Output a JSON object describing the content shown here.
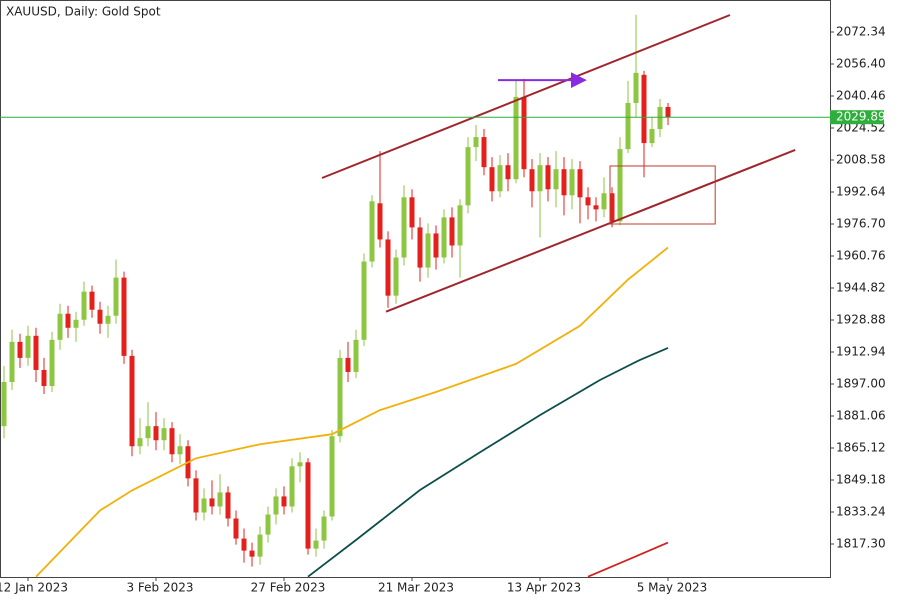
{
  "chart_data": {
    "type": "candlestick",
    "title": "XAUUSD, Daily:  Gold Spot",
    "categories": [
      null,
      null,
      null,
      "12 Jan 2023",
      null,
      null,
      null,
      null,
      null,
      null,
      null,
      null,
      null,
      null,
      null,
      null,
      null,
      null,
      null,
      "3 Feb 2023",
      null,
      null,
      null,
      null,
      null,
      null,
      null,
      null,
      null,
      null,
      null,
      null,
      null,
      null,
      null,
      "27 Feb 2023",
      null,
      null,
      null,
      null,
      null,
      null,
      null,
      null,
      null,
      null,
      null,
      null,
      null,
      null,
      null,
      "21 Mar 2023",
      null,
      null,
      null,
      null,
      null,
      null,
      null,
      null,
      null,
      null,
      null,
      null,
      null,
      null,
      null,
      "13 Apr 2023",
      null,
      null,
      null,
      null,
      null,
      null,
      null,
      null,
      null,
      null,
      null,
      null,
      null,
      null,
      null,
      "5 May 2023"
    ],
    "open": [
      1876,
      1898,
      1918,
      1910,
      1921,
      1904,
      1896,
      1919,
      1932,
      1925,
      1929,
      1943,
      1934,
      1927,
      1931,
      1950,
      1911,
      1866,
      1870,
      1876,
      1869,
      1875,
      1862,
      1866,
      1850,
      1833,
      1840,
      1836,
      1843,
      1830,
      1820,
      1814,
      1811,
      1822,
      1832,
      1841,
      1836,
      1856,
      1858,
      1815,
      1819,
      1831,
      1871,
      1910,
      1903,
      1919,
      1958,
      1987,
      1969,
      1941,
      1960,
      1990,
      1975,
      1955,
      1972,
      1960,
      1980,
      1966,
      1986,
      2015,
      2020,
      2005,
      1993,
      2006,
      1999,
      2040,
      2004,
      1993,
      2006,
      1994,
      2004,
      1991,
      2004,
      1990,
      1986,
      1984,
      1992,
      1978,
      2014,
      2037,
      2051,
      2017,
      2024,
      2035
    ],
    "high": [
      1906,
      1924,
      1922,
      1926,
      1925,
      1910,
      1923,
      1937,
      1936,
      1933,
      1948,
      1946,
      1938,
      1936,
      1959,
      1953,
      1914,
      1880,
      1888,
      1883,
      1880,
      1878,
      1872,
      1869,
      1854,
      1845,
      1849,
      1852,
      1846,
      1834,
      1825,
      1818,
      1826,
      1836,
      1845,
      1846,
      1860,
      1863,
      1860,
      1825,
      1834,
      1874,
      1914,
      1918,
      1924,
      1962,
      1991,
      2013,
      1973,
      1964,
      1996,
      1994,
      1980,
      1977,
      1976,
      1984,
      1985,
      1989,
      2020,
      2026,
      2024,
      2010,
      2011,
      2012,
      2048,
      2049,
      2009,
      2012,
      2010,
      2013,
      2010,
      2009,
      2008,
      1995,
      1990,
      2000,
      1995,
      2020,
      2048,
      2081,
      2053,
      2030,
      2039,
      2037
    ],
    "low": [
      1870,
      1894,
      1905,
      1906,
      1898,
      1892,
      1893,
      1914,
      1920,
      1918,
      1926,
      1930,
      1922,
      1920,
      1927,
      1907,
      1861,
      1862,
      1866,
      1864,
      1864,
      1858,
      1857,
      1846,
      1829,
      1829,
      1832,
      1832,
      1826,
      1817,
      1808,
      1806,
      1807,
      1818,
      1827,
      1832,
      1833,
      1848,
      1812,
      1811,
      1815,
      1829,
      1868,
      1898,
      1900,
      1916,
      1955,
      1965,
      1935,
      1937,
      1956,
      1969,
      1948,
      1950,
      1954,
      1957,
      1960,
      1950,
      1982,
      2008,
      2001,
      1988,
      1990,
      1993,
      1997,
      2000,
      1985,
      1970,
      1988,
      1985,
      1981,
      1984,
      1977,
      1979,
      1978,
      1980,
      1975,
      1976,
      2012,
      2030,
      2000,
      2015,
      2020,
      2026
    ],
    "close": [
      1898,
      1918,
      1910,
      1921,
      1904,
      1896,
      1919,
      1932,
      1925,
      1929,
      1943,
      1934,
      1927,
      1931,
      1950,
      1911,
      1866,
      1870,
      1876,
      1869,
      1875,
      1862,
      1866,
      1850,
      1833,
      1840,
      1836,
      1843,
      1830,
      1820,
      1814,
      1811,
      1822,
      1832,
      1841,
      1836,
      1856,
      1858,
      1815,
      1819,
      1831,
      1871,
      1910,
      1903,
      1919,
      1958,
      1988,
      1969,
      1941,
      1960,
      1990,
      1975,
      1955,
      1972,
      1960,
      1980,
      1966,
      1986,
      2015,
      2020,
      2005,
      1993,
      2006,
      1999,
      2040,
      2004,
      1993,
      2006,
      1994,
      2004,
      1991,
      2004,
      1990,
      1986,
      1984,
      1992,
      1978,
      2014,
      2037,
      2052,
      2017,
      2024,
      2035,
      2030
    ],
    "up_color": "#8dc641",
    "down_color": "#e3201b",
    "xlim": [
      -0.5,
      103.25
    ],
    "ylim": [
      1800.86,
      2088.28
    ],
    "yticks": [
      {
        "value": 1817.3,
        "label": "1817.30"
      },
      1833.24,
      1849.18,
      1865.12,
      1881.06,
      {
        "value": 1897,
        "label": "1897.00"
      },
      1912.94,
      1928.88,
      1944.82,
      1960.76,
      {
        "value": 1976.7,
        "label": "1976.70"
      },
      1992.64,
      2008.58,
      2024.52,
      2040.46,
      {
        "value": 2056.4,
        "label": "2056.40"
      },
      2072.34
    ],
    "last_price": 2029.89,
    "last_price_color": "#2eae3a",
    "overlays": [
      {
        "kind": "line",
        "color": "#f2b10a",
        "x": [
          4,
          12,
          16,
          24,
          32,
          41,
          47,
          54,
          64,
          72,
          78,
          83
        ],
        "values": [
          1801,
          1834,
          1844,
          1860,
          1867,
          1872,
          1884,
          1893,
          1907,
          1926,
          1949,
          1965
        ]
      },
      {
        "kind": "line",
        "color": "#0d4f4a",
        "x": [
          38,
          44,
          52,
          59.5,
          67,
          74.5,
          79.5,
          83
        ],
        "values": [
          1801,
          1819.3,
          1844.2,
          1863,
          1881.5,
          1899,
          1909,
          1915
        ]
      },
      {
        "kind": "line",
        "color": "#d32020",
        "x": [
          73,
          79.5,
          83
        ],
        "values": [
          1801,
          1812,
          1818
        ]
      },
      {
        "kind": "line",
        "color": "#a0262d",
        "x": [
          39.75,
          90.75
        ],
        "values": [
          1999.6,
          2080.8
        ]
      },
      {
        "kind": "line",
        "color": "#a0262d",
        "x": [
          47.75,
          98.9
        ],
        "values": [
          1933,
          2013.6
        ]
      },
      {
        "kind": "rect",
        "color": "#c0392b",
        "x": [
          75.75,
          88.9
        ],
        "values": [
          2005.6,
          1976.7
        ]
      },
      {
        "kind": "arrow",
        "color": "#8a2be2",
        "x": [
          61.75,
          72.6
        ],
        "values": [
          2048.4,
          2048.4
        ]
      }
    ]
  }
}
